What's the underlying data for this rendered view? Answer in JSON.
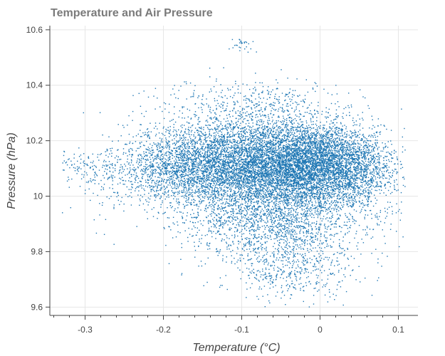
{
  "chart_data": {
    "type": "scatter",
    "title": "Temperature and Air Pressure",
    "xlabel": "Temperature (°C)",
    "ylabel": "Pressure (hPa)",
    "xlim": [
      -0.345,
      0.125
    ],
    "ylim": [
      9.57,
      10.615
    ],
    "x_ticks": [
      -0.3,
      -0.2,
      -0.1,
      0,
      0.1
    ],
    "x_tick_labels": [
      "-0.3",
      "-0.2",
      "-0.1",
      "0",
      "0.1"
    ],
    "y_ticks": [
      9.6,
      9.8,
      10.0,
      10.2,
      10.4,
      10.6
    ],
    "y_tick_labels": [
      "9.6",
      "9.8",
      "10",
      "10.2",
      "10.4",
      "10.6"
    ],
    "grid": true,
    "marker_color": "#1f77b4",
    "clusters": [
      {
        "cx": -0.02,
        "cy": 10.12,
        "sx": 0.045,
        "sy": 0.07,
        "n": 4200
      },
      {
        "cx": -0.12,
        "cy": 10.13,
        "sx": 0.05,
        "sy": 0.08,
        "n": 2600
      },
      {
        "cx": -0.06,
        "cy": 10.04,
        "sx": 0.07,
        "sy": 0.11,
        "n": 2600
      },
      {
        "cx": -0.05,
        "cy": 9.88,
        "sx": 0.05,
        "sy": 0.09,
        "n": 1100
      },
      {
        "cx": -0.18,
        "cy": 10.1,
        "sx": 0.04,
        "sy": 0.06,
        "n": 900
      },
      {
        "cx": 0.04,
        "cy": 10.1,
        "sx": 0.03,
        "sy": 0.07,
        "n": 900
      },
      {
        "cx": -0.08,
        "cy": 10.32,
        "sx": 0.06,
        "sy": 0.05,
        "n": 450
      },
      {
        "cx": -0.26,
        "cy": 10.08,
        "sx": 0.035,
        "sy": 0.06,
        "n": 240
      },
      {
        "cx": -0.03,
        "cy": 9.72,
        "sx": 0.04,
        "sy": 0.05,
        "n": 260
      },
      {
        "cx": -0.1,
        "cy": 10.55,
        "sx": 0.008,
        "sy": 0.015,
        "n": 30
      },
      {
        "cx": -0.31,
        "cy": 10.12,
        "sx": 0.012,
        "sy": 0.02,
        "n": 40
      }
    ]
  }
}
